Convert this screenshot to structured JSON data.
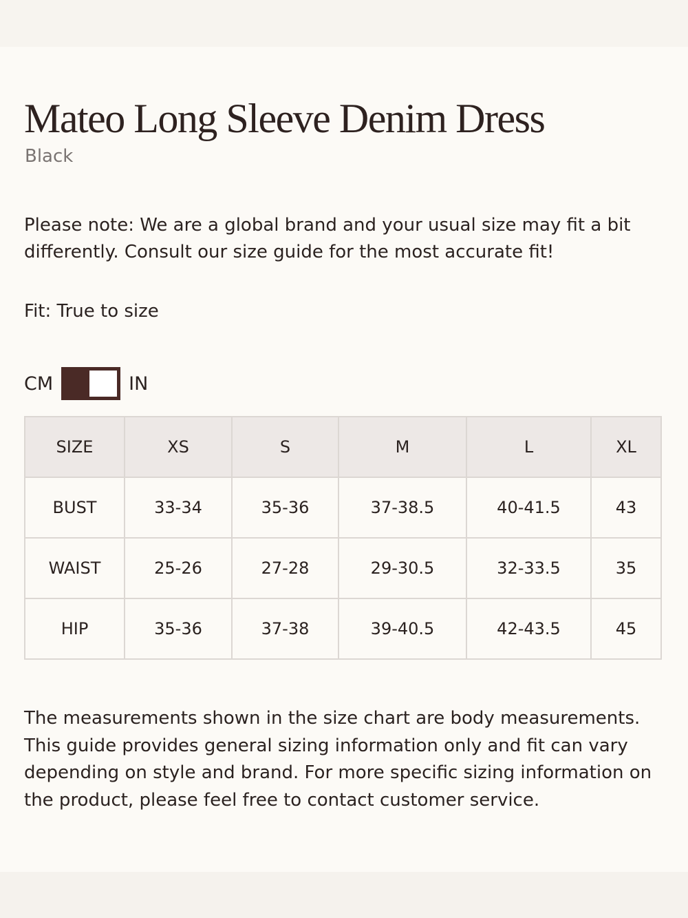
{
  "header": {
    "title": "Mateo Long Sleeve Denim Dress",
    "subtitle": "Black"
  },
  "note": "Please note: We are a global brand and your usual size may fit a bit differently. Consult our size guide for the most accurate fit!",
  "fit": "Fit: True to size",
  "unit_toggle": {
    "left": "CM",
    "right": "IN"
  },
  "table": {
    "header": [
      "SIZE",
      "XS",
      "S",
      "M",
      "L",
      "XL"
    ],
    "rows": [
      [
        "BUST",
        "33-34",
        "35-36",
        "37-38.5",
        "40-41.5",
        "43"
      ],
      [
        "WAIST",
        "25-26",
        "27-28",
        "29-30.5",
        "32-33.5",
        "35"
      ],
      [
        "HIP",
        "35-36",
        "37-38",
        "39-40.5",
        "42-43.5",
        "45"
      ]
    ]
  },
  "footer": "The measurements shown in the size chart are body measurements. This guide provides general sizing information only and fit can vary depending on style and brand. For more specific sizing information on the product, please feel free to contact customer service."
}
